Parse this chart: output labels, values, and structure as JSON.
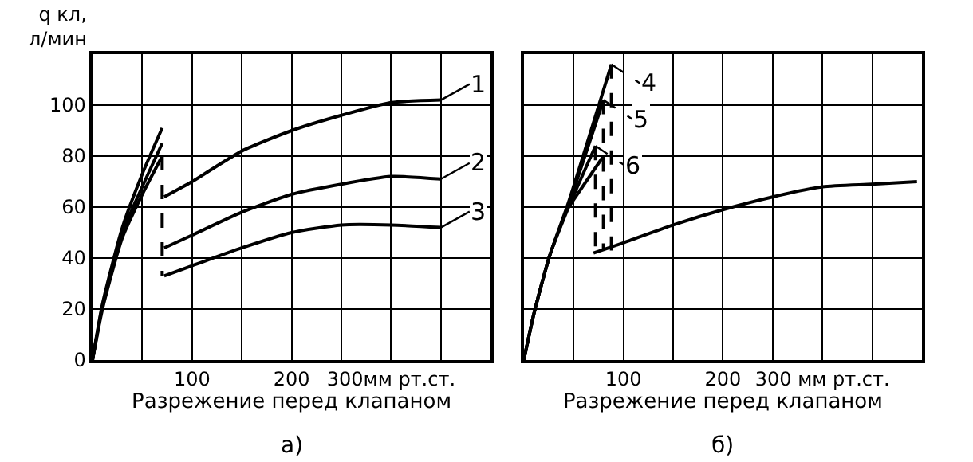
{
  "chart_data": [
    {
      "type": "line",
      "ylabel": "q кл,\nл/мин",
      "xlabel": "Разрежение перед клапаном",
      "annotations": [
        "а)"
      ],
      "xlim": [
        0,
        400
      ],
      "ylim": [
        0,
        120
      ],
      "xticks": [
        {
          "value": 0,
          "label": null
        },
        {
          "value": 50,
          "label": null
        },
        100,
        {
          "value": 150,
          "label": null
        },
        200,
        {
          "value": 250,
          "label": null
        },
        {
          "value": 300,
          "label": "300мм рт.ст."
        },
        {
          "value": 350,
          "label": null
        },
        {
          "value": 400,
          "label": null
        }
      ],
      "yticks": [
        0,
        20,
        40,
        60,
        80,
        100,
        {
          "value": 120,
          "label": null
        }
      ],
      "grid": true,
      "legend": "right",
      "marker": "none",
      "series": [
        {
          "color": "#000000",
          "line_style": "solid",
          "x": [
            0,
            10,
            30,
            50,
            70
          ],
          "values": [
            0,
            22,
            52,
            73,
            91
          ]
        },
        {
          "color": "#000000",
          "line_style": "solid",
          "x": [
            0,
            10,
            30,
            50,
            70
          ],
          "values": [
            0,
            21,
            50,
            68,
            85
          ]
        },
        {
          "color": "#000000",
          "line_style": "solid",
          "x": [
            0,
            10,
            30,
            50,
            70
          ],
          "values": [
            0,
            20,
            48,
            65,
            80
          ]
        },
        {
          "name": "1",
          "color": "#000000",
          "line_style": "solid",
          "x": [
            72,
            100,
            150,
            200,
            250,
            300,
            350
          ],
          "values": [
            64,
            70,
            82,
            90,
            96,
            101,
            102
          ]
        },
        {
          "name": "2",
          "color": "#000000",
          "line_style": "solid",
          "x": [
            72,
            100,
            150,
            200,
            250,
            300,
            350
          ],
          "values": [
            44,
            49,
            58,
            65,
            69,
            72,
            71
          ]
        },
        {
          "name": "3",
          "color": "#000000",
          "line_style": "solid",
          "x": [
            72,
            100,
            150,
            200,
            250,
            300,
            350
          ],
          "values": [
            33,
            37,
            44,
            50,
            53,
            53,
            52
          ]
        },
        {
          "color": "#000000",
          "line_style": "dashed",
          "x": [
            70,
            70
          ],
          "values": [
            80,
            33
          ]
        }
      ]
    },
    {
      "type": "line",
      "xlabel": "Разрежение перед клапаном",
      "annotations": [
        "б)"
      ],
      "xlim": [
        0,
        400
      ],
      "ylim": [
        0,
        120
      ],
      "tick_labels": "x",
      "xticks": [
        {
          "value": 0,
          "label": null
        },
        {
          "value": 50,
          "label": null
        },
        100,
        {
          "value": 150,
          "label": null
        },
        200,
        {
          "value": 250,
          "label": null
        },
        {
          "value": 300,
          "label": "300 мм рт.ст."
        },
        {
          "value": 350,
          "label": null
        },
        {
          "value": 400,
          "label": null
        }
      ],
      "yticks": [
        0,
        20,
        40,
        60,
        80,
        100,
        120
      ],
      "grid": true,
      "legend": "top",
      "marker": "none",
      "series": [
        {
          "color": "#000000",
          "line_style": "solid",
          "x": [
            0,
            10,
            26,
            45,
            88
          ],
          "values": [
            0,
            18,
            41,
            62,
            116
          ]
        },
        {
          "color": "#000000",
          "line_style": "solid",
          "x": [
            0,
            10,
            26,
            45,
            80
          ],
          "values": [
            0,
            18,
            41,
            61,
            102
          ]
        },
        {
          "color": "#000000",
          "line_style": "solid",
          "x": [
            0,
            10,
            26,
            45,
            72
          ],
          "values": [
            0,
            18,
            41,
            60,
            84
          ]
        },
        {
          "color": "#000000",
          "line_style": "solid",
          "x": [
            45,
            80
          ],
          "values": [
            60,
            80
          ]
        },
        {
          "name": "4",
          "color": "#000000",
          "line_style": "dashed",
          "x": [
            88,
            88
          ],
          "values": [
            116,
            43
          ]
        },
        {
          "name": "5",
          "color": "#000000",
          "line_style": "dashed",
          "x": [
            80,
            80
          ],
          "values": [
            102,
            43
          ]
        },
        {
          "name": "6",
          "color": "#000000",
          "line_style": "dashed",
          "x": [
            72,
            72
          ],
          "values": [
            84,
            42
          ]
        },
        {
          "color": "#000000",
          "line_style": "solid",
          "x": [
            70,
            100,
            150,
            200,
            250,
            300,
            350,
            395
          ],
          "values": [
            42,
            46,
            53,
            59,
            64,
            68,
            69,
            70
          ]
        }
      ]
    }
  ]
}
